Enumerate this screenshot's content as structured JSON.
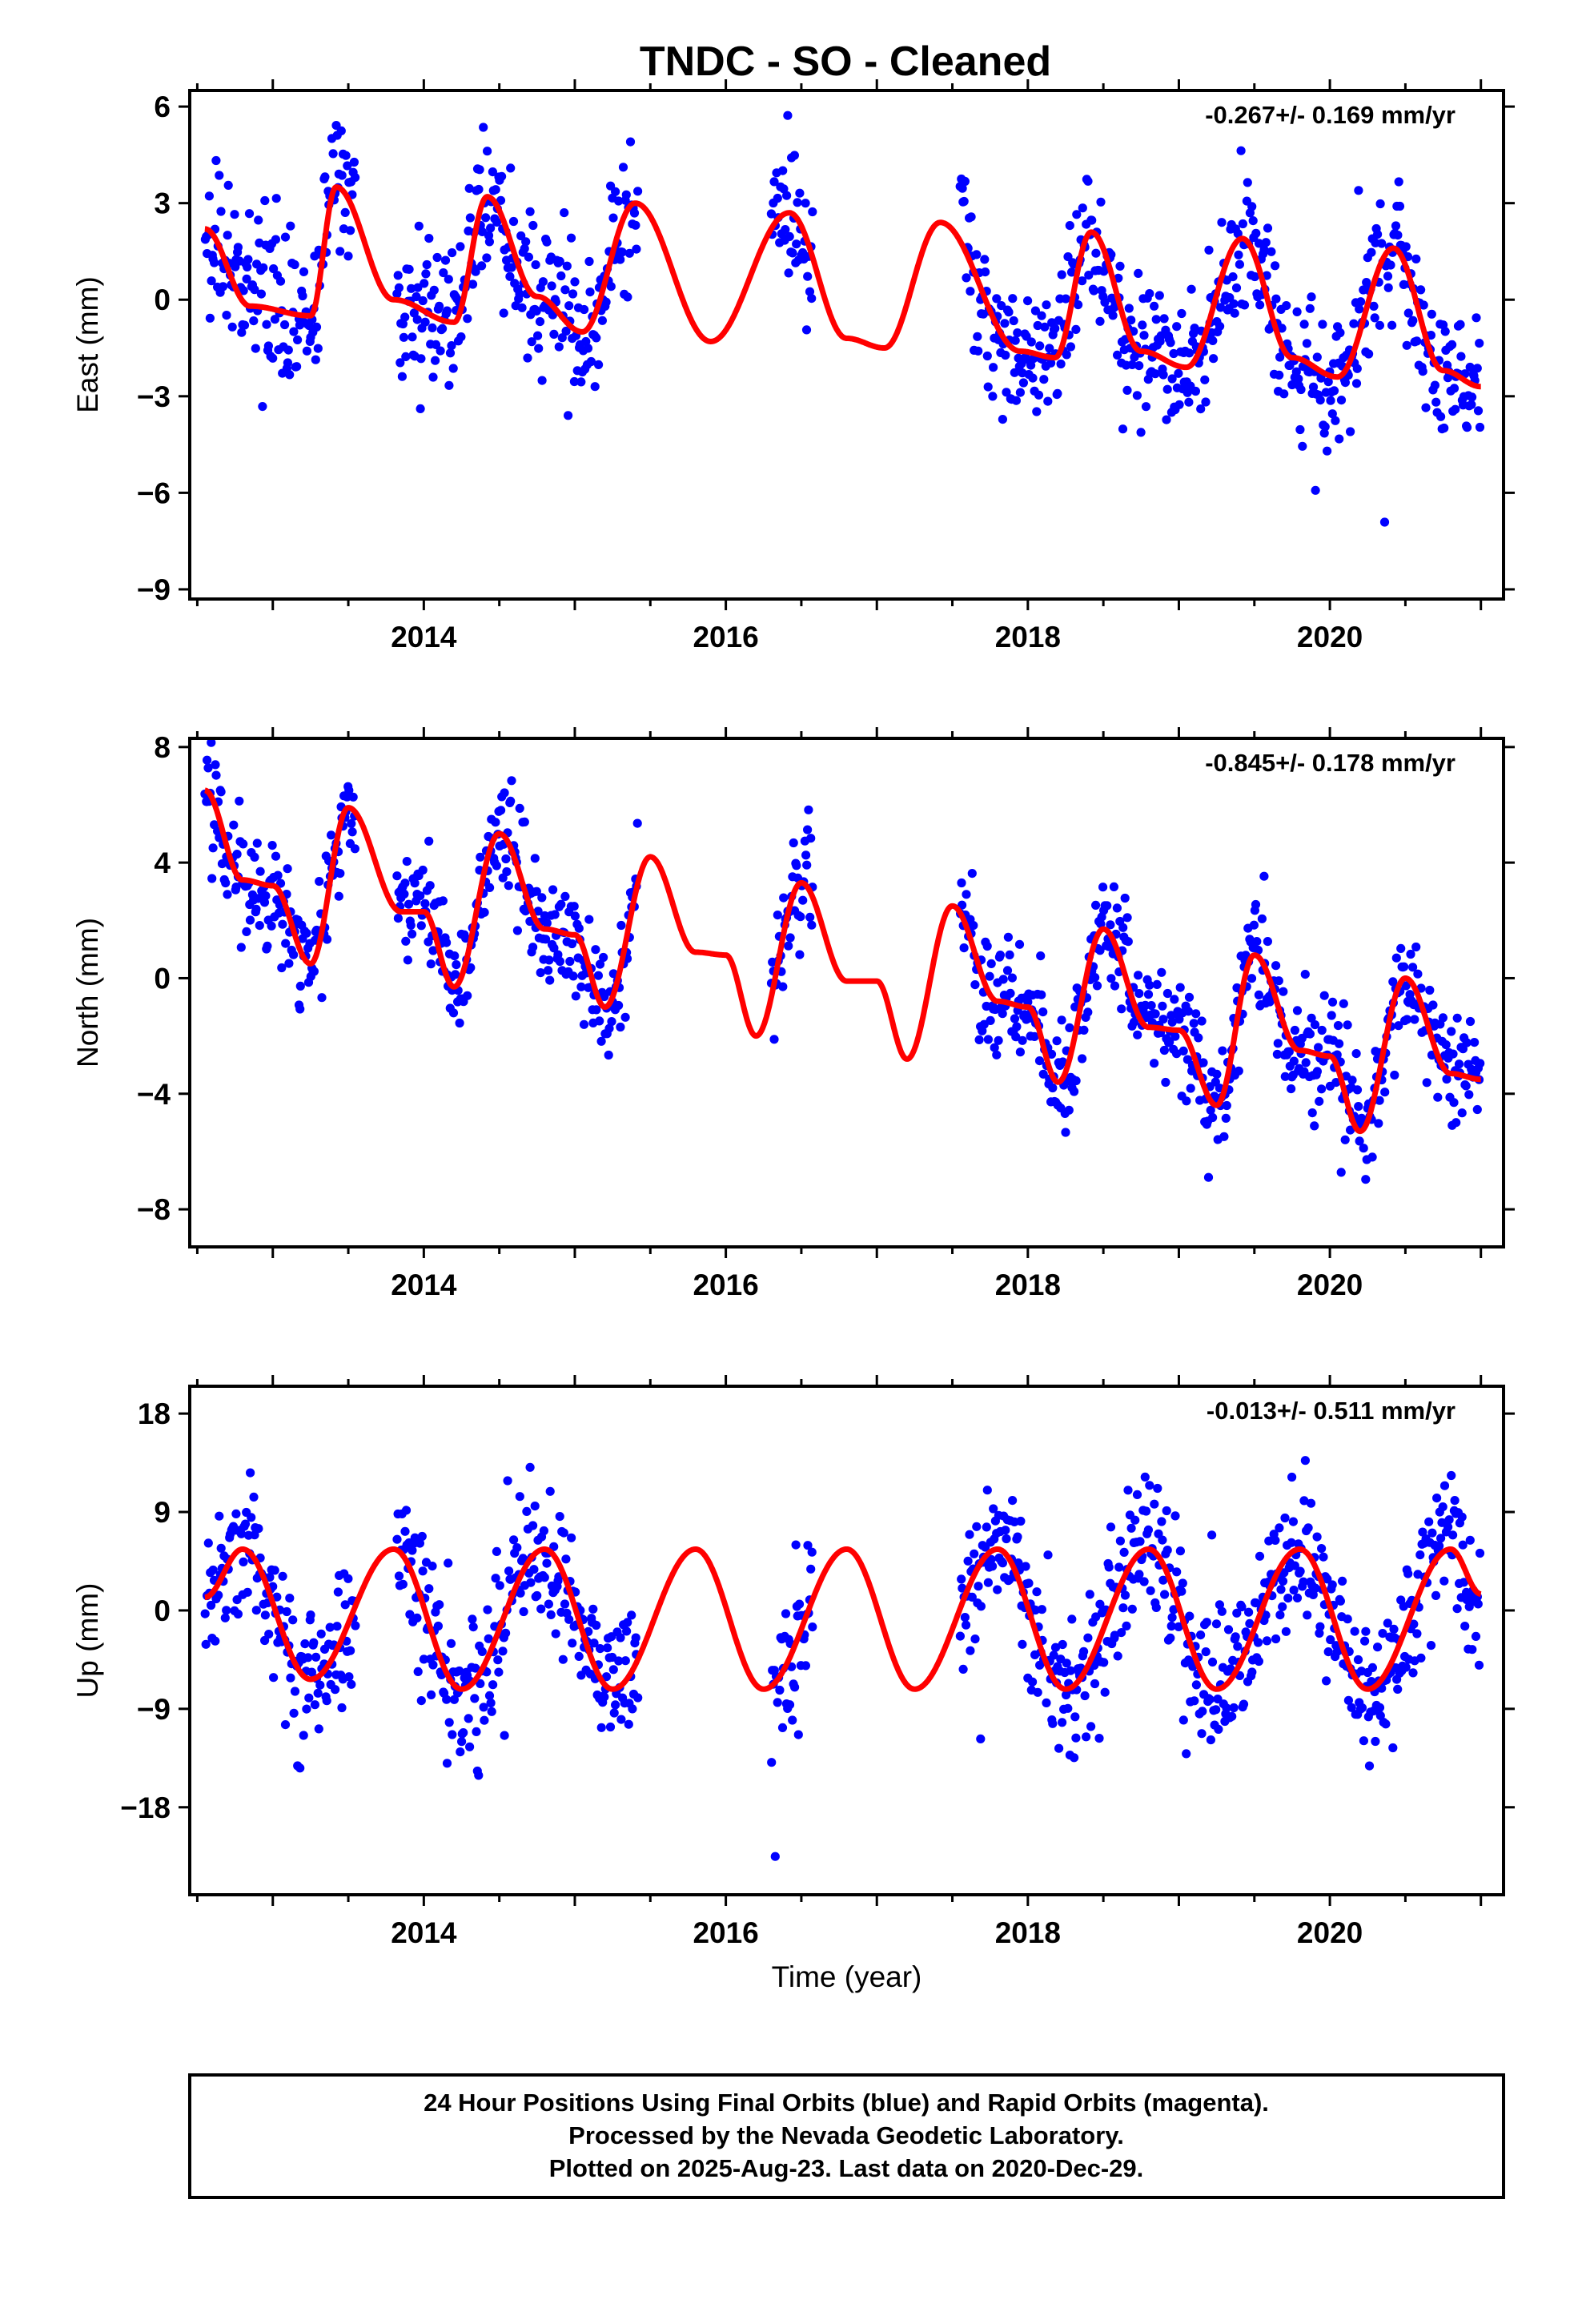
{
  "title": "TNDC  - SO - Cleaned",
  "chart_data": [
    {
      "type": "scatter",
      "name": "east",
      "ylabel": "East (mm)",
      "xlabel": "",
      "rate_text": "-0.267+/- 0.169 mm/yr",
      "xlim": [
        2012.45,
        2021.15
      ],
      "ylim": [
        -9.3,
        6.5
      ],
      "yticks": [
        6,
        3,
        0,
        -3,
        -6,
        -9
      ],
      "yticklabels": [
        "6",
        "3",
        "0",
        "−3",
        "−6",
        "−9"
      ],
      "xticks": [
        2014,
        2016,
        2018,
        2020
      ],
      "xticklabels": [
        "2014",
        "2016",
        "2018",
        "2020"
      ],
      "point_color": "#0000ff",
      "fit_color": "#ff0000",
      "data_segments": [
        [
          2012.55,
          2013.55
        ],
        [
          2013.82,
          2015.42
        ],
        [
          2016.3,
          2016.58
        ],
        [
          2017.55,
          2021.0
        ]
      ],
      "fit": {
        "knots_x": [
          2012.55,
          2012.85,
          2013.25,
          2013.42,
          2013.8,
          2014.2,
          2014.42,
          2014.75,
          2015.05,
          2015.4,
          2015.9,
          2016.42,
          2016.8,
          2017.05,
          2017.42,
          2017.95,
          2018.18,
          2018.42,
          2018.75,
          2019.05,
          2019.42,
          2019.75,
          2020.05,
          2020.42,
          2020.75,
          2021.0
        ],
        "knots_y": [
          2.2,
          -0.2,
          -0.5,
          3.5,
          0.0,
          -0.7,
          3.2,
          0.1,
          -1.0,
          3.0,
          -1.3,
          2.7,
          -1.2,
          -1.5,
          2.4,
          -1.6,
          -1.8,
          2.1,
          -1.6,
          -2.1,
          1.9,
          -1.8,
          -2.4,
          1.6,
          -2.2,
          -2.7
        ]
      },
      "seasonal": {
        "amp": 1.2,
        "noise": 1.1,
        "per_year": 150
      }
    },
    {
      "type": "scatter",
      "name": "north",
      "ylabel": "North (mm)",
      "xlabel": "",
      "rate_text": "-0.845+/- 0.178 mm/yr",
      "xlim": [
        2012.45,
        2021.15
      ],
      "ylim": [
        -9.3,
        8.3
      ],
      "yticks": [
        8,
        4,
        0,
        -4,
        -8
      ],
      "yticklabels": [
        "8",
        "4",
        "0",
        "−4",
        "−8"
      ],
      "xticks": [
        2014,
        2016,
        2018,
        2020
      ],
      "xticklabels": [
        "2014",
        "2016",
        "2018",
        "2020"
      ],
      "point_color": "#0000ff",
      "fit_color": "#ff0000",
      "data_segments": [
        [
          2012.55,
          2013.55
        ],
        [
          2013.82,
          2015.42
        ],
        [
          2016.3,
          2016.58
        ],
        [
          2017.55,
          2021.0
        ]
      ],
      "fit": {
        "knots_x": [
          2012.55,
          2012.8,
          2013.0,
          2013.25,
          2013.5,
          2013.85,
          2014.0,
          2014.2,
          2014.5,
          2014.8,
          2015.0,
          2015.2,
          2015.5,
          2015.8,
          2016.0,
          2016.2,
          2016.5,
          2016.8,
          2017.0,
          2017.2,
          2017.5,
          2017.8,
          2018.0,
          2018.2,
          2018.5,
          2018.8,
          2019.0,
          2019.25,
          2019.5,
          2019.8,
          2020.0,
          2020.2,
          2020.5,
          2020.8,
          2021.0
        ],
        "knots_y": [
          6.5,
          3.4,
          3.2,
          0.5,
          5.9,
          2.3,
          2.3,
          -0.3,
          5.0,
          1.7,
          1.5,
          -1.0,
          4.2,
          0.9,
          0.8,
          -2.0,
          3.3,
          -0.1,
          -0.1,
          -2.8,
          2.5,
          -0.8,
          -1.0,
          -3.6,
          1.7,
          -1.7,
          -1.8,
          -4.4,
          0.8,
          -2.5,
          -2.7,
          -5.3,
          0.0,
          -3.3,
          -3.5
        ]
      },
      "seasonal": {
        "amp": 0.8,
        "noise": 1.0,
        "per_year": 150
      }
    },
    {
      "type": "scatter",
      "name": "up",
      "ylabel": "Up (mm)",
      "xlabel": "Time (year)",
      "rate_text": "-0.013+/- 0.511 mm/yr",
      "xlim": [
        2012.45,
        2021.15
      ],
      "ylim": [
        -26,
        20.5
      ],
      "yticks": [
        18,
        9,
        0,
        -9,
        -18
      ],
      "yticklabels": [
        "18",
        "9",
        "0",
        "−9",
        "−18"
      ],
      "xticks": [
        2014,
        2016,
        2018,
        2020
      ],
      "xticklabels": [
        "2014",
        "2016",
        "2018",
        "2020"
      ],
      "point_color": "#0000ff",
      "fit_color": "#ff0000",
      "data_segments": [
        [
          2012.55,
          2013.55
        ],
        [
          2013.82,
          2015.42
        ],
        [
          2016.3,
          2016.58
        ],
        [
          2017.55,
          2021.0
        ]
      ],
      "fit": {
        "knots_x": [
          2012.55,
          2012.8,
          2013.25,
          2013.8,
          2014.25,
          2014.8,
          2015.25,
          2015.8,
          2016.25,
          2016.8,
          2017.25,
          2017.8,
          2018.25,
          2018.8,
          2019.25,
          2019.8,
          2020.25,
          2020.8,
          2021.0
        ],
        "knots_y": [
          1.2,
          5.6,
          -6.3,
          5.6,
          -7.2,
          5.6,
          -7.2,
          5.6,
          -7.2,
          5.6,
          -7.2,
          5.6,
          -7.2,
          5.6,
          -7.2,
          5.6,
          -7.2,
          5.6,
          1.5
        ]
      },
      "seasonal": {
        "amp": 1.5,
        "noise": 3.2,
        "per_year": 150
      }
    }
  ],
  "caption": {
    "line1": "24 Hour Positions Using Final Orbits (blue) and Rapid Orbits (magenta).",
    "line2": "Processed by the Nevada Geodetic Laboratory.",
    "line3": "Plotted on 2025-Aug-23. Last data on 2020-Dec-29."
  }
}
